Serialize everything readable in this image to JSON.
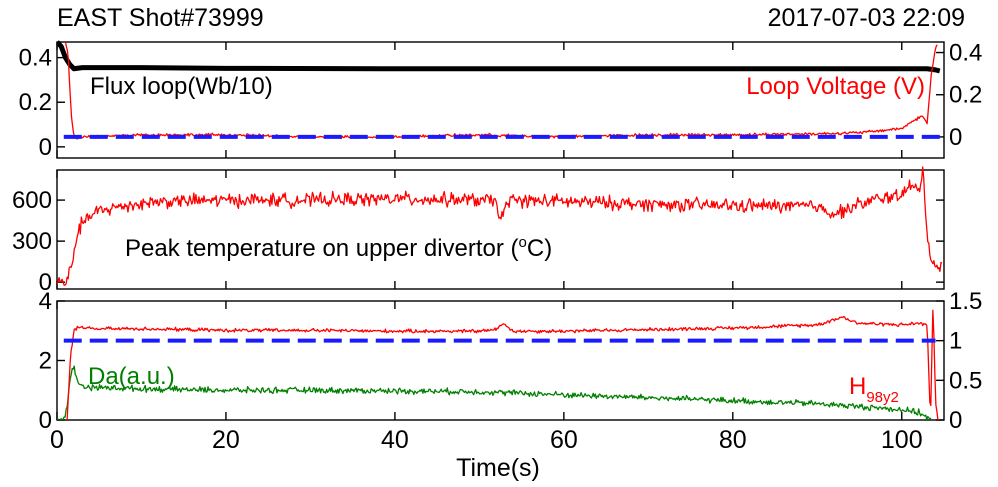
{
  "header": {
    "shot": "EAST Shot#73999",
    "datetime": "2017-07-03 22:09"
  },
  "colors": {
    "flux": "#000000",
    "loop_voltage": "#ff0000",
    "reference": "#1a1aff",
    "temperature": "#ff0000",
    "h98": "#ff0000",
    "da": "#008000"
  },
  "chart_data": [
    {
      "type": "line",
      "panel": "top",
      "annotations": [
        "Flux loop(Wb/10)",
        "Loop Voltage (V)"
      ],
      "xlim": [
        0,
        105
      ],
      "y_left": {
        "ylim": [
          -0.05,
          0.47
        ],
        "ticks": [
          0,
          0.2,
          0.4
        ],
        "tick_labels": [
          "0",
          "0.2",
          "0.4"
        ]
      },
      "y_right": {
        "ylim": [
          -0.1,
          0.45
        ],
        "ticks": [
          0,
          0.2,
          0.4
        ],
        "tick_labels": [
          "0",
          "0.2",
          "0.4"
        ]
      },
      "series": [
        {
          "name": "Flux loop(Wb/10)",
          "axis": "left",
          "style": "solid",
          "x": [
            0,
            0.5,
            1,
            1.5,
            2,
            3,
            10,
            20,
            40,
            60,
            80,
            95,
            100,
            103,
            104,
            104.5
          ],
          "y": [
            0.47,
            0.45,
            0.4,
            0.37,
            0.35,
            0.355,
            0.355,
            0.352,
            0.35,
            0.35,
            0.35,
            0.35,
            0.35,
            0.35,
            0.345,
            0.34
          ]
        },
        {
          "name": "Loop Voltage (V)",
          "axis": "right",
          "style": "solid",
          "x": [
            1.0,
            1.3,
            1.7,
            2.0,
            2.3,
            3,
            10,
            20,
            30,
            40,
            50,
            60,
            70,
            80,
            90,
            95,
            100,
            101.5,
            102.5,
            103,
            103.5,
            104,
            104.3
          ],
          "y": [
            0.45,
            0.4,
            0.1,
            0.0,
            -0.01,
            0.0,
            0.01,
            0.01,
            0.0,
            0.0,
            0.01,
            0.0,
            0.01,
            0.01,
            0.015,
            0.02,
            0.04,
            0.08,
            0.1,
            0.06,
            0.3,
            0.42,
            0.45
          ],
          "noise": 0.006
        },
        {
          "name": "reference",
          "axis": "right",
          "style": "dashed",
          "x": [
            0.8,
            104.5
          ],
          "y": [
            0,
            0
          ]
        }
      ]
    },
    {
      "type": "line",
      "panel": "middle",
      "annotations": [
        "Peak temperature on upper divertor (",
        "o",
        "C)"
      ],
      "xlim": [
        0,
        105
      ],
      "y_left": {
        "ylim": [
          -50,
          820
        ],
        "ticks": [
          0,
          300,
          600
        ],
        "tick_labels": [
          "0",
          "300",
          "600"
        ]
      },
      "series": [
        {
          "name": "Peak temperature on upper divertor",
          "axis": "left",
          "style": "solid",
          "x": [
            0,
            1.2,
            1.8,
            2.2,
            3,
            5,
            8,
            12,
            20,
            30,
            40,
            50,
            52,
            52.5,
            53.5,
            60,
            70,
            80,
            90,
            92,
            95,
            98,
            100,
            101,
            102,
            102.5,
            103,
            103.5,
            104,
            104.8
          ],
          "y": [
            0,
            0,
            150,
            300,
            440,
            520,
            560,
            590,
            600,
            600,
            610,
            600,
            590,
            450,
            600,
            590,
            570,
            560,
            555,
            500,
            570,
            620,
            640,
            700,
            670,
            820,
            360,
            160,
            120,
            100
          ],
          "noise": 45
        }
      ]
    },
    {
      "type": "line",
      "panel": "bottom",
      "annotations": [
        "Da(a.u.)",
        "H",
        "98y2"
      ],
      "xlim": [
        0,
        105
      ],
      "xlabel": "Time(s)",
      "x_ticks": [
        0,
        20,
        40,
        60,
        80,
        100
      ],
      "x_tick_labels": [
        "0",
        "20",
        "40",
        "60",
        "80",
        "100"
      ],
      "y_left": {
        "ylim": [
          0,
          4
        ],
        "ticks": [
          0,
          2,
          4
        ],
        "tick_labels": [
          "0",
          "2",
          "4"
        ]
      },
      "y_right": {
        "ylim": [
          0,
          1.5
        ],
        "ticks": [
          0,
          0.5,
          1,
          1.5
        ],
        "tick_labels": [
          "0",
          "0.5",
          "1",
          "1.5"
        ]
      },
      "series": [
        {
          "name": "Da(a.u.)",
          "axis": "left",
          "style": "solid",
          "x": [
            0,
            0.8,
            1.2,
            1.6,
            2.0,
            2.5,
            4,
            10,
            20,
            30,
            40,
            50,
            55,
            60,
            70,
            80,
            90,
            95,
            100,
            102,
            103,
            103.5
          ],
          "y": [
            0,
            0,
            0.5,
            1.5,
            1.8,
            1.2,
            1.1,
            1.05,
            1.0,
            1.0,
            0.98,
            0.95,
            0.9,
            0.85,
            0.75,
            0.65,
            0.55,
            0.45,
            0.35,
            0.25,
            0.1,
            0.0
          ],
          "noise": 0.09
        },
        {
          "name": "H98y2",
          "axis": "right",
          "style": "solid",
          "x": [
            1.2,
            1.6,
            2.0,
            2.5,
            4,
            10,
            20,
            30,
            40,
            50,
            52,
            52.8,
            54,
            60,
            70,
            80,
            90,
            93,
            94,
            95,
            100,
            102,
            103,
            103.4,
            103.7,
            104,
            104.3
          ],
          "y": [
            0.0,
            0.8,
            1.12,
            1.18,
            1.15,
            1.15,
            1.13,
            1.13,
            1.12,
            1.12,
            1.14,
            1.22,
            1.12,
            1.12,
            1.14,
            1.16,
            1.2,
            1.3,
            1.25,
            1.22,
            1.2,
            1.22,
            1.2,
            0.0,
            1.5,
            0.2,
            0.0
          ],
          "noise": 0.02
        },
        {
          "name": "reference",
          "axis": "right",
          "style": "dashed",
          "x": [
            0.8,
            104
          ],
          "y": [
            1,
            1
          ]
        }
      ]
    }
  ]
}
